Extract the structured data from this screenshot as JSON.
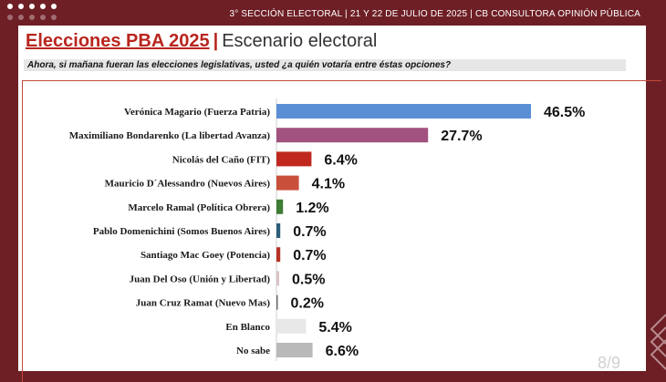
{
  "header": {
    "meta": "3° SECCIÓN ELECTORAL  | 21 Y 22 DE JULIO DE 2025 | CB CONSULTORA OPINIÓN PÚBLICA",
    "title_main": "Elecciones PBA 2025",
    "title_sep": "|",
    "title_sub": "Escenario electoral",
    "question": "Ahora, si mañana fueran las elecciones legislativas, usted ¿a quién votaría entre éstas opciones?"
  },
  "page_number": "8/9",
  "colors": {
    "background": "#6e1f26",
    "title_red": "#b8261e"
  },
  "chart_data": {
    "type": "bar",
    "orientation": "horizontal",
    "categories": [
      "Verónica Magario (Fuerza Patria)",
      "Maximiliano Bondarenko (La libertad Avanza)",
      "Nicolás del Caño (FIT)",
      "Mauricio D´Alessandro (Nuevos Aires)",
      "Marcelo Ramal (Política Obrera)",
      "Pablo Domenichini (Somos Buenos Aires)",
      "Santiago Mac Goey (Potencia)",
      "Juan Del Oso (Unión y Libertad)",
      "Juan Cruz Ramat (Nuevo Mas)",
      "En Blanco",
      "No sabe"
    ],
    "values": [
      46.5,
      27.7,
      6.4,
      4.1,
      1.2,
      0.7,
      0.7,
      0.5,
      0.2,
      5.4,
      6.6
    ],
    "value_labels": [
      "46.5%",
      "27.7%",
      "6.4%",
      "4.1%",
      "1.2%",
      "0.7%",
      "0.7%",
      "0.5%",
      "0.2%",
      "5.4%",
      "6.6%"
    ],
    "colors": [
      "#5a8fd6",
      "#a2527e",
      "#c0281f",
      "#c9503a",
      "#3e7d34",
      "#2c5e78",
      "#b83226",
      "#d9c3c6",
      "#6a6a6a",
      "#e8e8e8",
      "#b9b9b9"
    ],
    "xlim": [
      0,
      50
    ],
    "title": "",
    "xlabel": "",
    "ylabel": ""
  }
}
